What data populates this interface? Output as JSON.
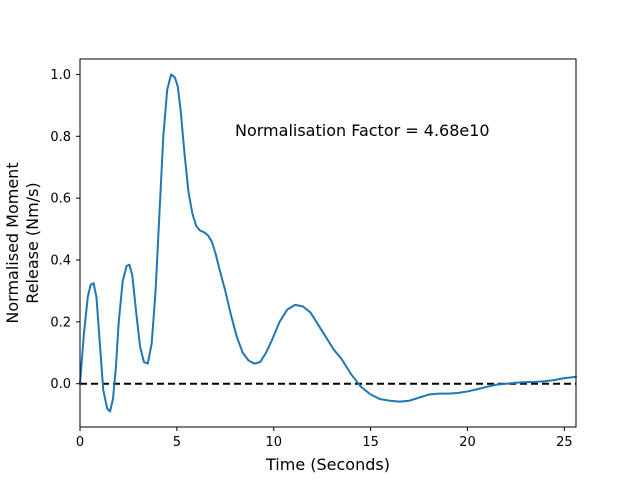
{
  "chart_data": {
    "type": "line",
    "title": "",
    "xlabel": "Time (Seconds)",
    "ylabel_lines": [
      "Normalised Moment",
      "Release (Nm/s)"
    ],
    "annotation": "Normalisation Factor = 4.68e10",
    "xlim": [
      0,
      25.6
    ],
    "ylim": [
      -0.14,
      1.05
    ],
    "xticks": [
      0,
      5,
      10,
      15,
      20,
      25
    ],
    "yticks": [
      0.0,
      0.2,
      0.4,
      0.6,
      0.8,
      1.0
    ],
    "xtick_labels": [
      "0",
      "5",
      "10",
      "15",
      "20",
      "25"
    ],
    "ytick_labels": [
      "0.0",
      "0.2",
      "0.4",
      "0.6",
      "0.8",
      "1.0"
    ],
    "grid": false,
    "series": [
      {
        "color": "#1f77b4",
        "x": [
          0,
          0.2,
          0.4,
          0.55,
          0.7,
          0.85,
          1.0,
          1.2,
          1.4,
          1.55,
          1.7,
          1.85,
          2.0,
          2.2,
          2.4,
          2.55,
          2.7,
          2.9,
          3.1,
          3.3,
          3.5,
          3.7,
          3.9,
          4.1,
          4.3,
          4.5,
          4.7,
          4.9,
          5.05,
          5.2,
          5.4,
          5.6,
          5.8,
          6.0,
          6.2,
          6.4,
          6.6,
          6.8,
          7.0,
          7.2,
          7.5,
          7.8,
          8.1,
          8.4,
          8.7,
          9.0,
          9.3,
          9.6,
          9.9,
          10.3,
          10.7,
          11.1,
          11.5,
          11.9,
          12.3,
          12.7,
          13.1,
          13.5,
          14.0,
          14.5,
          15.0,
          15.5,
          16.0,
          16.5,
          17.0,
          17.5,
          18.0,
          18.5,
          19.0,
          19.5,
          20.0,
          20.5,
          21.0,
          21.5,
          22.0,
          22.5,
          23.0,
          23.5,
          24.0,
          24.5,
          25.0,
          25.6
        ],
        "y": [
          0.0,
          0.16,
          0.28,
          0.32,
          0.325,
          0.28,
          0.15,
          -0.02,
          -0.08,
          -0.09,
          -0.05,
          0.05,
          0.2,
          0.33,
          0.38,
          0.385,
          0.35,
          0.23,
          0.12,
          0.07,
          0.065,
          0.13,
          0.3,
          0.55,
          0.8,
          0.95,
          1.0,
          0.99,
          0.96,
          0.88,
          0.74,
          0.62,
          0.55,
          0.51,
          0.495,
          0.49,
          0.48,
          0.46,
          0.42,
          0.37,
          0.3,
          0.22,
          0.15,
          0.1,
          0.075,
          0.065,
          0.07,
          0.1,
          0.14,
          0.2,
          0.24,
          0.255,
          0.25,
          0.23,
          0.19,
          0.15,
          0.11,
          0.08,
          0.03,
          -0.01,
          -0.035,
          -0.05,
          -0.055,
          -0.058,
          -0.055,
          -0.045,
          -0.035,
          -0.032,
          -0.032,
          -0.03,
          -0.025,
          -0.018,
          -0.01,
          -0.003,
          0.0,
          0.003,
          0.005,
          0.006,
          0.008,
          0.012,
          0.018,
          0.022
        ]
      }
    ],
    "reference_line": {
      "y": 0.0,
      "style": "dashed",
      "color": "#000000"
    }
  }
}
